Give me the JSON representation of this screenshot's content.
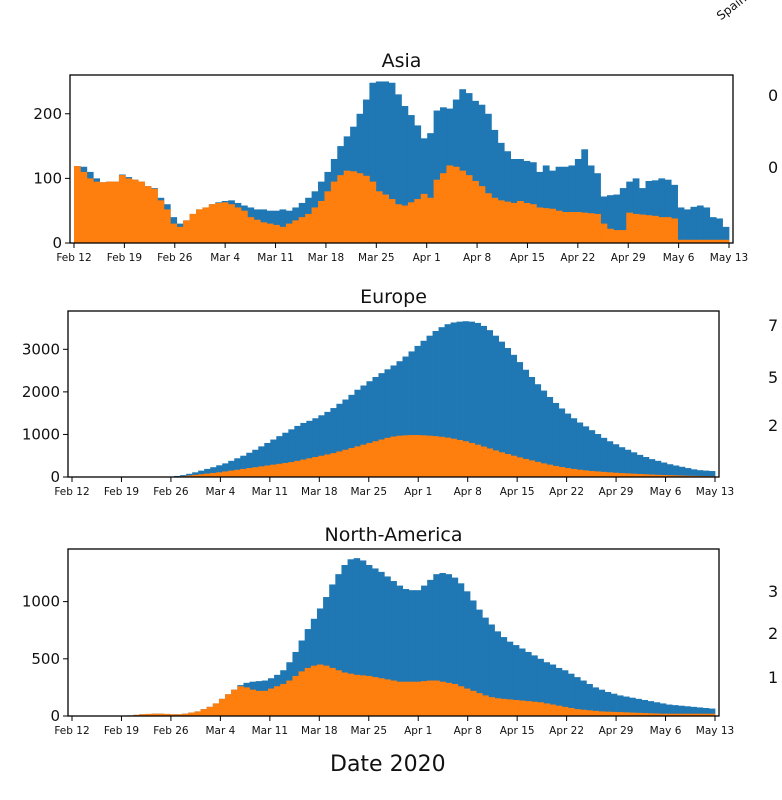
{
  "figure": {
    "xlabel": "Date 2020",
    "x_tick_labels": [
      "Feb 12",
      "Feb 19",
      "Feb 26",
      "Mar 4",
      "Mar 11",
      "Mar 18",
      "Mar 25",
      "Apr 1",
      "Apr 8",
      "Apr 15",
      "Apr 22",
      "Apr 29",
      "May 6",
      "May 13"
    ],
    "colors": {
      "series_total": "#1f77b4",
      "series_part": "#ff7f0e",
      "axis": "#000000"
    },
    "edge_fragments": {
      "rotated_label": "Spain",
      "right_texts": [
        "0",
        "0",
        "7",
        "5",
        "2",
        "3",
        "2",
        "1"
      ]
    }
  },
  "chart_data": [
    {
      "type": "bar",
      "title": "Asia",
      "xlabel": "",
      "ylabel": "",
      "x_start": "2020-02-12",
      "x_end": "2020-05-13",
      "ylim": [
        0,
        260
      ],
      "yticks": [
        0,
        100,
        200
      ],
      "grid": false,
      "series": [
        {
          "values": [
            119,
            118,
            110,
            100,
            94,
            95,
            95,
            106,
            102,
            98,
            95,
            88,
            85,
            70,
            60,
            40,
            30,
            35,
            45,
            52,
            55,
            60,
            63,
            65,
            66,
            62,
            58,
            55,
            52,
            52,
            50,
            50,
            52,
            50,
            55,
            62,
            70,
            80,
            95,
            110,
            130,
            150,
            165,
            180,
            200,
            222,
            248,
            250,
            250,
            248,
            230,
            212,
            198,
            182,
            162,
            170,
            205,
            210,
            208,
            222,
            238,
            232,
            220,
            214,
            200,
            175,
            155,
            142,
            130,
            130,
            127,
            125,
            110,
            120,
            112,
            118,
            118,
            120,
            130,
            145,
            120,
            108,
            72,
            74,
            75,
            85,
            95,
            100,
            85,
            96,
            97,
            100,
            98,
            90,
            55,
            52,
            56,
            58,
            55,
            40,
            38,
            25
          ]
        },
        {
          "values": [
            119,
            110,
            100,
            95,
            94,
            95,
            95,
            105,
            100,
            98,
            95,
            88,
            84,
            66,
            52,
            30,
            25,
            35,
            45,
            52,
            55,
            60,
            62,
            63,
            60,
            55,
            50,
            40,
            36,
            32,
            30,
            28,
            25,
            30,
            35,
            40,
            45,
            55,
            65,
            80,
            95,
            105,
            112,
            111,
            108,
            104,
            95,
            80,
            75,
            68,
            60,
            58,
            63,
            68,
            76,
            70,
            98,
            108,
            120,
            118,
            112,
            105,
            96,
            88,
            77,
            70,
            66,
            64,
            62,
            65,
            62,
            60,
            55,
            54,
            53,
            50,
            48,
            48,
            48,
            47,
            46,
            45,
            30,
            22,
            20,
            20,
            47,
            45,
            44,
            43,
            42,
            40,
            40,
            38,
            5,
            5,
            5,
            5,
            5,
            5,
            5,
            5
          ]
        }
      ]
    },
    {
      "type": "bar",
      "title": "Europe",
      "xlabel": "",
      "ylabel": "",
      "x_start": "2020-02-12",
      "x_end": "2020-05-13",
      "ylim": [
        0,
        3900
      ],
      "yticks": [
        0,
        1000,
        2000,
        3000
      ],
      "grid": false,
      "series": [
        {
          "values": [
            0,
            0,
            0,
            0,
            0,
            0,
            0,
            0,
            0,
            0,
            0,
            0,
            0,
            0,
            0,
            0,
            10,
            25,
            45,
            75,
            110,
            150,
            190,
            230,
            275,
            320,
            380,
            440,
            500,
            570,
            640,
            720,
            800,
            880,
            960,
            1040,
            1120,
            1200,
            1270,
            1320,
            1380,
            1450,
            1530,
            1620,
            1720,
            1820,
            1930,
            2050,
            2150,
            2250,
            2350,
            2440,
            2530,
            2620,
            2720,
            2830,
            2950,
            3080,
            3200,
            3320,
            3430,
            3520,
            3590,
            3630,
            3650,
            3660,
            3650,
            3620,
            3550,
            3450,
            3320,
            3180,
            3030,
            2870,
            2700,
            2520,
            2350,
            2180,
            2030,
            1880,
            1740,
            1610,
            1490,
            1380,
            1280,
            1190,
            1100,
            1010,
            920,
            840,
            770,
            700,
            640,
            580,
            520,
            470,
            420,
            380,
            340,
            300,
            270,
            240,
            210,
            180,
            160,
            150,
            140
          ]
        },
        {
          "values": [
            0,
            0,
            0,
            0,
            0,
            0,
            0,
            0,
            0,
            0,
            0,
            0,
            0,
            0,
            0,
            0,
            5,
            10,
            20,
            35,
            50,
            65,
            80,
            95,
            110,
            130,
            150,
            170,
            190,
            210,
            230,
            250,
            270,
            290,
            310,
            330,
            350,
            380,
            410,
            440,
            470,
            500,
            530,
            560,
            600,
            640,
            680,
            720,
            760,
            800,
            840,
            880,
            920,
            950,
            970,
            980,
            985,
            985,
            980,
            970,
            960,
            945,
            925,
            900,
            870,
            840,
            800,
            760,
            715,
            670,
            625,
            580,
            540,
            500,
            460,
            425,
            390,
            355,
            320,
            290,
            260,
            235,
            210,
            190,
            170,
            155,
            140,
            130,
            120,
            110,
            100,
            92,
            85,
            78,
            70,
            64,
            58,
            52,
            47,
            42,
            38,
            34,
            30,
            27,
            25,
            22,
            20
          ]
        }
      ]
    },
    {
      "type": "bar",
      "title": "North-America",
      "xlabel": "",
      "ylabel": "",
      "x_start": "2020-02-12",
      "x_end": "2020-05-13",
      "ylim": [
        0,
        1460
      ],
      "yticks": [
        0,
        500,
        1000
      ],
      "grid": false,
      "series": [
        {
          "values": [
            0,
            0,
            0,
            0,
            0,
            0,
            0,
            0,
            0,
            5,
            10,
            15,
            18,
            20,
            20,
            18,
            15,
            15,
            20,
            30,
            40,
            60,
            80,
            110,
            150,
            190,
            230,
            270,
            290,
            300,
            305,
            310,
            330,
            360,
            400,
            470,
            560,
            660,
            760,
            850,
            940,
            1040,
            1150,
            1240,
            1320,
            1370,
            1380,
            1360,
            1320,
            1290,
            1260,
            1220,
            1180,
            1140,
            1110,
            1100,
            1100,
            1140,
            1190,
            1240,
            1250,
            1240,
            1210,
            1160,
            1090,
            1010,
            930,
            860,
            800,
            740,
            690,
            650,
            620,
            590,
            560,
            530,
            500,
            470,
            450,
            420,
            400,
            370,
            340,
            310,
            280,
            250,
            230,
            210,
            195,
            180,
            170,
            160,
            150,
            140,
            130,
            120,
            110,
            100,
            95,
            90,
            85,
            80,
            75,
            70,
            65
          ]
        },
        {
          "values": [
            0,
            0,
            0,
            0,
            0,
            0,
            0,
            0,
            0,
            5,
            10,
            15,
            18,
            20,
            20,
            18,
            15,
            15,
            20,
            30,
            40,
            60,
            80,
            110,
            150,
            190,
            230,
            260,
            250,
            230,
            220,
            220,
            240,
            260,
            280,
            310,
            350,
            390,
            420,
            440,
            450,
            440,
            420,
            400,
            380,
            370,
            360,
            355,
            350,
            340,
            330,
            320,
            310,
            300,
            300,
            300,
            300,
            305,
            310,
            310,
            300,
            290,
            280,
            260,
            240,
            220,
            200,
            180,
            165,
            155,
            150,
            145,
            140,
            135,
            130,
            125,
            120,
            110,
            100,
            90,
            80,
            70,
            60,
            55,
            50,
            45,
            40,
            38,
            36,
            34,
            32,
            30,
            28,
            26,
            24,
            22,
            20,
            20,
            20,
            20,
            20,
            20,
            20,
            20,
            20
          ]
        }
      ]
    }
  ]
}
